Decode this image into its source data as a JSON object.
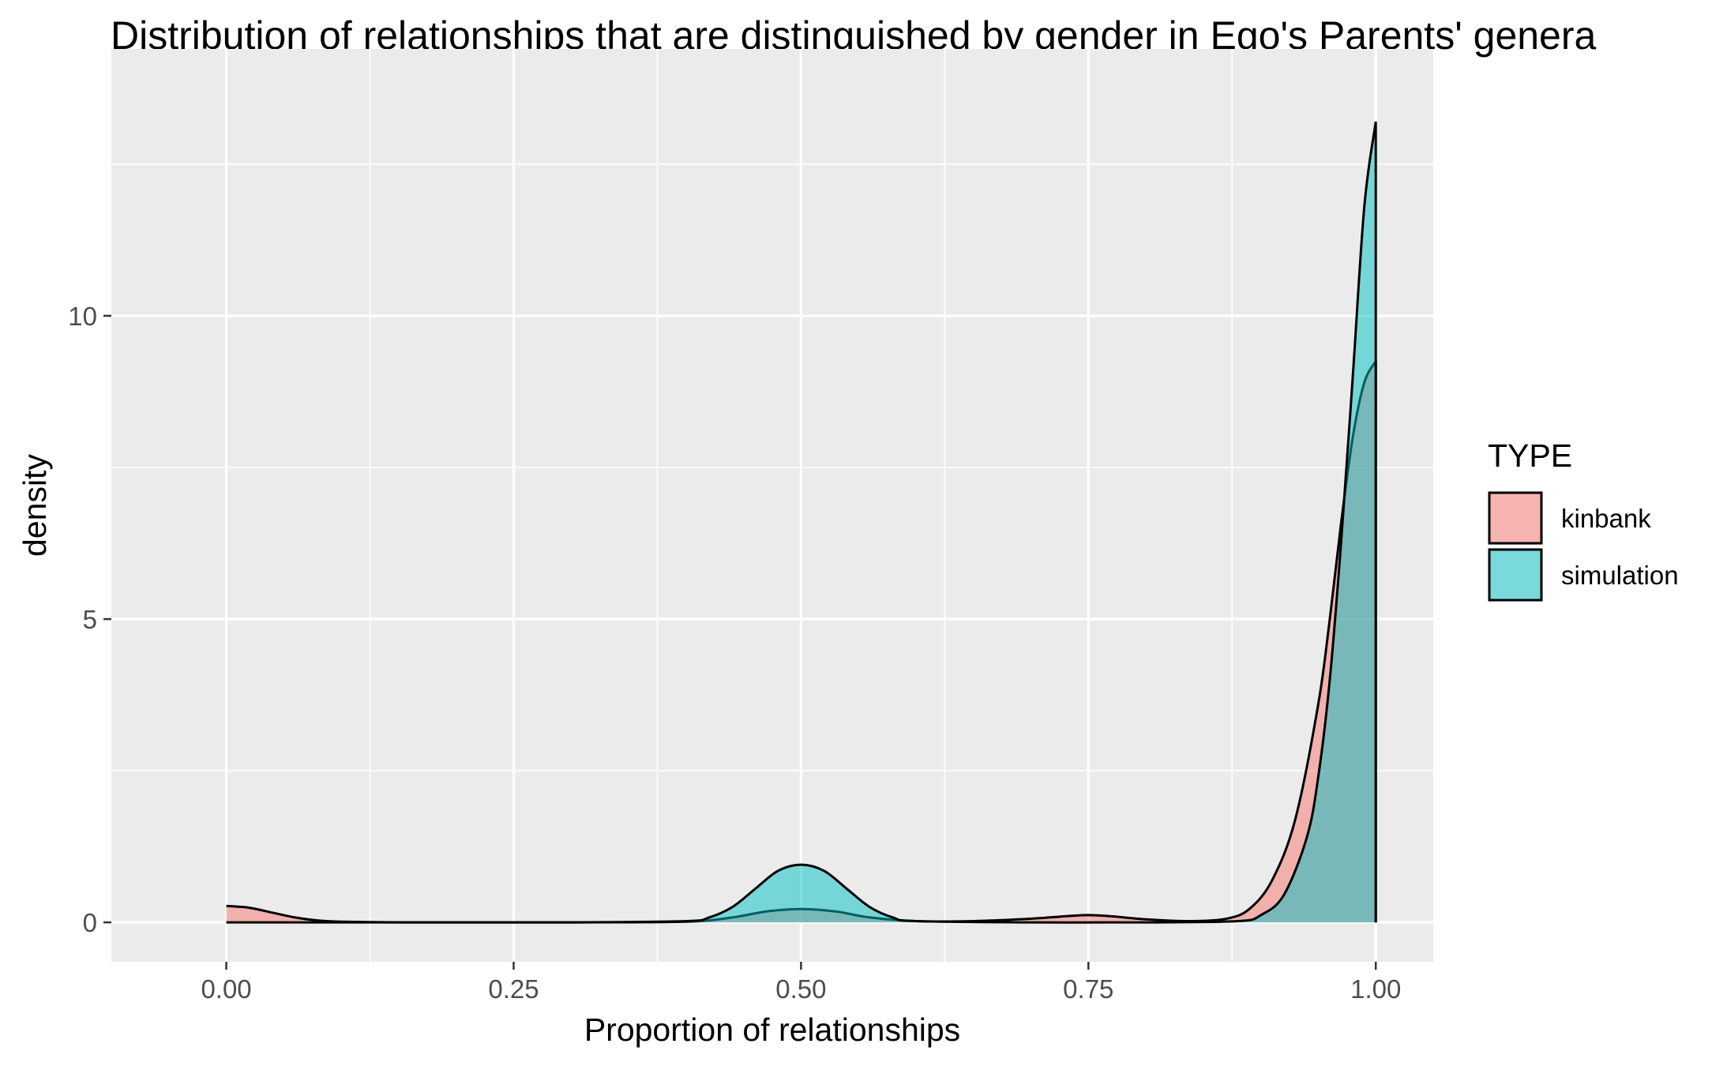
{
  "chart_data": {
    "type": "area",
    "title": "Distribution of relationships that are distinguished by gender in Ego's Parents' genera",
    "xlabel": "Proportion of relationships",
    "ylabel": "density",
    "xlim": [
      -0.1,
      1.05
    ],
    "ylim": [
      -0.65,
      14.4
    ],
    "x_ticks": [
      0.0,
      0.25,
      0.5,
      0.75,
      1.0
    ],
    "x_tick_labels": [
      "0.00",
      "0.25",
      "0.50",
      "0.75",
      "1.00"
    ],
    "y_ticks": [
      0,
      5,
      10
    ],
    "y_tick_labels": [
      "0",
      "5",
      "10"
    ],
    "grid": true,
    "legend": {
      "title": "TYPE",
      "position": "right",
      "entries": [
        "kinbank",
        "simulation"
      ]
    },
    "series": [
      {
        "name": "kinbank",
        "color": "#F8766D",
        "x": [
          0.0,
          0.02,
          0.04,
          0.06,
          0.08,
          0.1,
          0.15,
          0.2,
          0.3,
          0.4,
          0.44,
          0.47,
          0.5,
          0.53,
          0.56,
          0.6,
          0.65,
          0.7,
          0.73,
          0.75,
          0.77,
          0.8,
          0.84,
          0.87,
          0.89,
          0.91,
          0.93,
          0.95,
          0.96,
          0.97,
          0.98,
          0.99,
          1.0
        ],
        "y": [
          0.27,
          0.24,
          0.16,
          0.08,
          0.03,
          0.01,
          0.0,
          0.0,
          0.0,
          0.01,
          0.08,
          0.18,
          0.22,
          0.18,
          0.08,
          0.02,
          0.02,
          0.06,
          0.1,
          0.12,
          0.1,
          0.05,
          0.02,
          0.06,
          0.22,
          0.7,
          1.7,
          3.6,
          5.0,
          6.6,
          8.0,
          8.9,
          9.25
        ]
      },
      {
        "name": "simulation",
        "color": "#00BFC4",
        "x": [
          0.0,
          0.1,
          0.2,
          0.3,
          0.4,
          0.42,
          0.44,
          0.46,
          0.48,
          0.5,
          0.52,
          0.54,
          0.56,
          0.58,
          0.6,
          0.7,
          0.8,
          0.88,
          0.9,
          0.92,
          0.94,
          0.95,
          0.96,
          0.97,
          0.98,
          0.99,
          1.0
        ],
        "y": [
          0.0,
          0.0,
          0.0,
          0.0,
          0.02,
          0.08,
          0.25,
          0.55,
          0.85,
          0.95,
          0.85,
          0.55,
          0.25,
          0.08,
          0.02,
          0.0,
          0.0,
          0.02,
          0.12,
          0.45,
          1.4,
          2.4,
          4.0,
          6.3,
          9.0,
          11.8,
          13.2
        ]
      }
    ]
  }
}
